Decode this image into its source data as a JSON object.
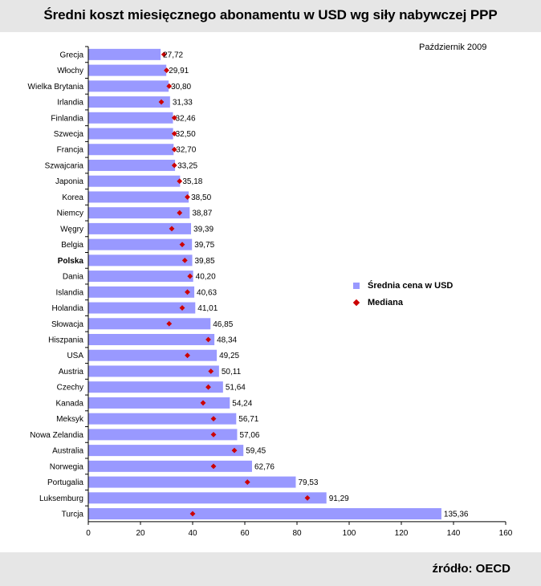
{
  "header": {
    "title": "Średni koszt miesięcznego abonamentu w USD wg siły nabywczej PPP"
  },
  "footer": {
    "source": "źródło: OECD"
  },
  "note": {
    "date": "Październik 2009"
  },
  "legend": {
    "bar_label": "Średnia cena w USD",
    "median_label": "Mediana"
  },
  "colors": {
    "bar": "#9999ff",
    "median": "#cc0000"
  },
  "chart_data": {
    "type": "bar",
    "orientation": "horizontal",
    "title": "Średni koszt miesięcznego abonamentu w USD wg siły nabywczej PPP",
    "xlim": [
      0,
      160
    ],
    "xticks": [
      0,
      20,
      40,
      60,
      80,
      100,
      120,
      140,
      160
    ],
    "highlight": "Polska",
    "categories": [
      "Grecja",
      "Włochy",
      "Wielka Brytania",
      "Irlandia",
      "Finlandia",
      "Szwecja",
      "Francja",
      "Szwajcaria",
      "Japonia",
      "Korea",
      "Niemcy",
      "Węgry",
      "Belgia",
      "Polska",
      "Dania",
      "Islandia",
      "Holandia",
      "Słowacja",
      "Hiszpania",
      "USA",
      "Austria",
      "Czechy",
      "Kanada",
      "Meksyk",
      "Nowa Zelandia",
      "Australia",
      "Norwegia",
      "Portugalia",
      "Luksemburg",
      "Turcja"
    ],
    "series": [
      {
        "name": "Średnia cena w USD",
        "values": [
          27.72,
          29.91,
          30.8,
          31.33,
          32.46,
          32.5,
          32.7,
          33.25,
          35.18,
          38.5,
          38.87,
          39.39,
          39.75,
          39.85,
          40.2,
          40.63,
          41.01,
          46.85,
          48.34,
          49.25,
          50.11,
          51.64,
          54.24,
          56.71,
          57.06,
          59.45,
          62.76,
          79.53,
          91.29,
          135.36
        ],
        "labels": [
          "27,72",
          "29,91",
          "30,80",
          "31,33",
          "32,46",
          "32,50",
          "32,70",
          "33,25",
          "35,18",
          "38,50",
          "38,87",
          "39,39",
          "39,75",
          "39,85",
          "40,20",
          "40,63",
          "41,01",
          "46,85",
          "48,34",
          "49,25",
          "50,11",
          "51,64",
          "54,24",
          "56,71",
          "57,06",
          "59,45",
          "62,76",
          "79,53",
          "91,29",
          "135,36"
        ]
      },
      {
        "name": "Mediana",
        "values": [
          29,
          30,
          31,
          28,
          33,
          33,
          33,
          33,
          35,
          38,
          35,
          32,
          36,
          37,
          39,
          38,
          36,
          31,
          46,
          38,
          47,
          46,
          44,
          48,
          48,
          56,
          48,
          61,
          84,
          40
        ]
      }
    ]
  }
}
